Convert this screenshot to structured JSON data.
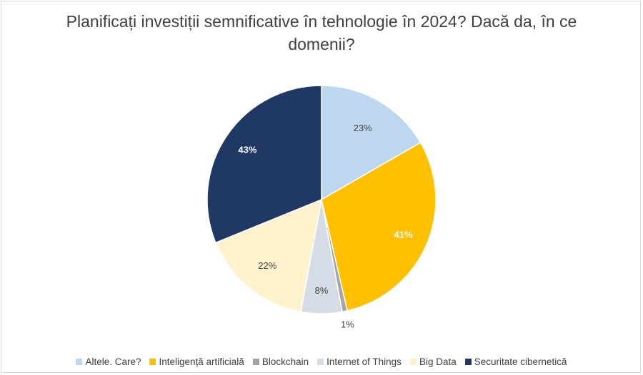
{
  "chart_data": {
    "type": "pie",
    "title": "Planificați investiții semnificative în tehnologie în 2024? Dacă da, în ce domenii?",
    "categories": [
      "Altele. Care?",
      "Inteligență artificială",
      "Blockchain",
      "Internet of Things",
      "Big Data",
      "Securitate cibernetică"
    ],
    "values": [
      23,
      41,
      1,
      8,
      22,
      43
    ],
    "labels": [
      "23%",
      "41%",
      "1%",
      "8%",
      "22%",
      "43%"
    ],
    "colors": [
      "#bdd7ee",
      "#ffc000",
      "#a5a5a5",
      "#d6dce5",
      "#fff2cc",
      "#203864"
    ],
    "label_colors": [
      "#404040",
      "#ffffff",
      "#404040",
      "#404040",
      "#404040",
      "#ffffff"
    ],
    "start_angle_deg": 0,
    "direction": "clockwise",
    "legend_position": "bottom"
  }
}
